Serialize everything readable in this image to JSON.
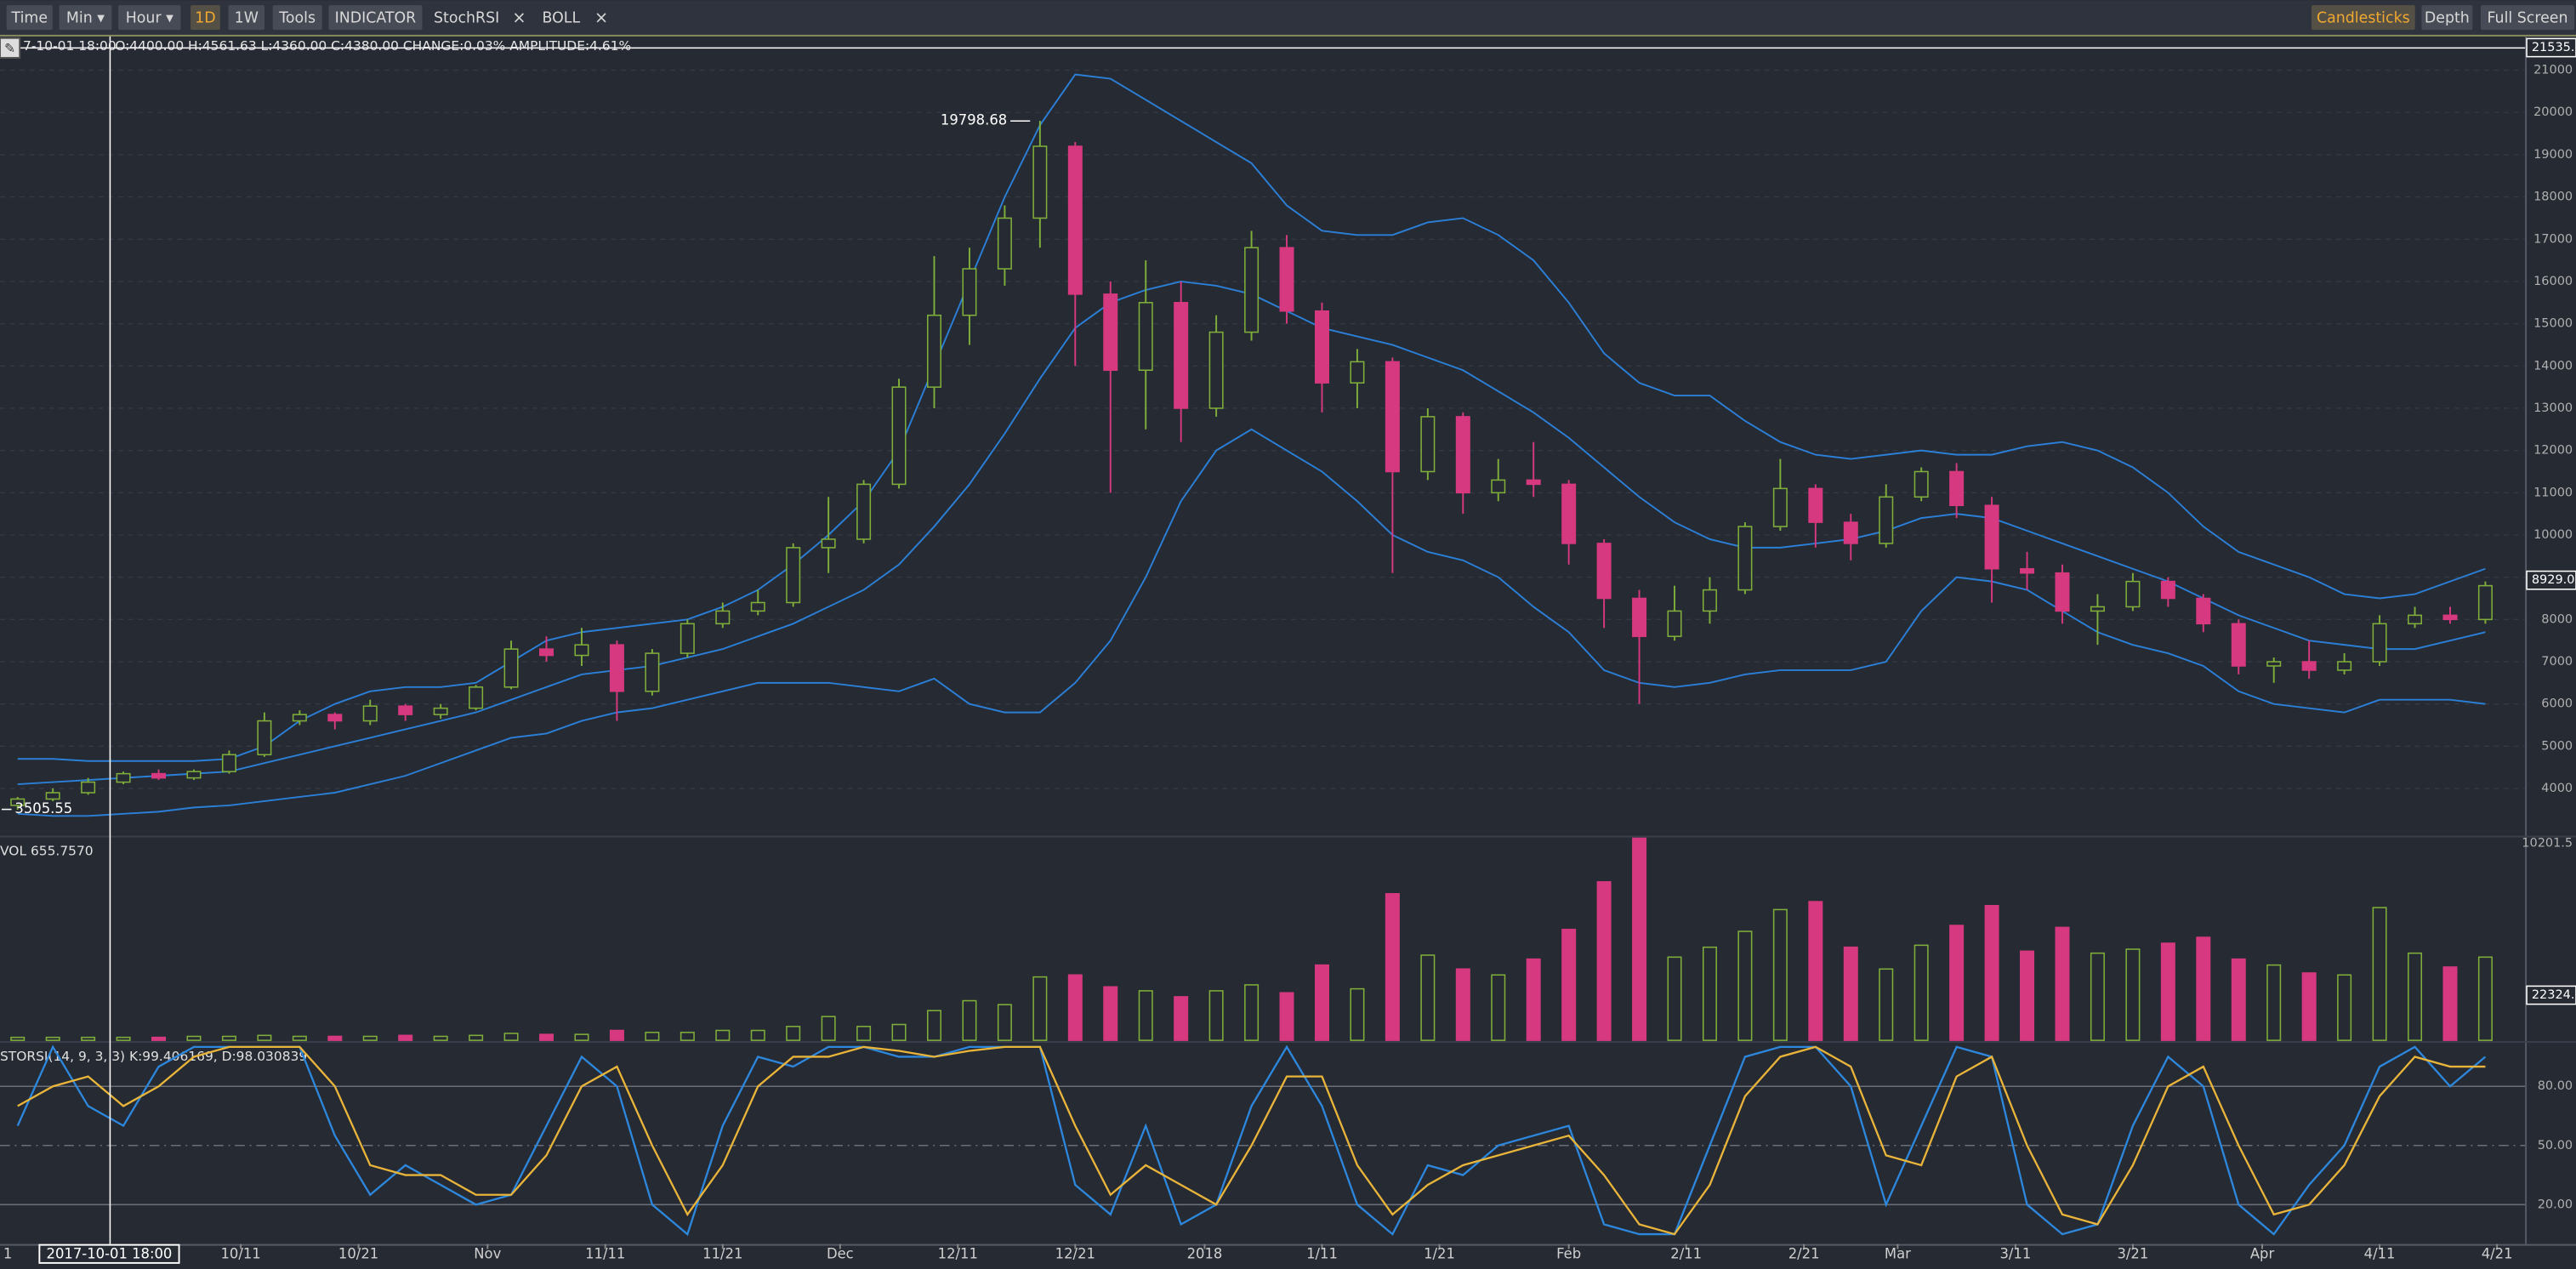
{
  "toolbar": {
    "left": [
      "Time",
      "Min ▾",
      "Hour ▾",
      "1D",
      "1W",
      "Tools",
      "INDICATOR"
    ],
    "indicators": [
      "StochRSI",
      "BOLL"
    ],
    "close_icon": "×",
    "right": [
      "Candlesticks",
      "Depth",
      "Full Screen"
    ]
  },
  "info": {
    "datetime": "7-10-01 18:00",
    "ohlc": "O:4400.00 H:4561.63 L:4360.00 C:4380.00 CHANGE:0.03% AMPLITUDE:4.61%",
    "crosshair_label": "2017-10-01 18:00",
    "left_edge_label": "1"
  },
  "chart_data": [
    {
      "type": "candlestick",
      "xlim": [
        -0.5,
        70.8
      ],
      "ylim": [
        2900,
        21800
      ],
      "yticks": [
        4000,
        5000,
        6000,
        7000,
        8000,
        9000,
        10000,
        11000,
        12000,
        13000,
        14000,
        15000,
        16000,
        17000,
        18000,
        19000,
        20000,
        21000
      ],
      "grid": true,
      "up_color": "#7fae3a",
      "down_color": "#d6397f",
      "open": [
        3600,
        3750,
        3900,
        4150,
        4350,
        4250,
        4400,
        4800,
        5600,
        5750,
        5600,
        5950,
        5750,
        5900,
        6400,
        7300,
        7150,
        7400,
        6300,
        7200,
        7900,
        8200,
        8400,
        9700,
        9900,
        11200,
        13500,
        15200,
        16300,
        17500,
        19200,
        15700,
        13900,
        15500,
        13000,
        14800,
        16800,
        15300,
        13600,
        14100,
        11500,
        12800,
        11000,
        11300,
        11200,
        9800,
        8500,
        7600,
        8200,
        8700,
        10200,
        11100,
        10300,
        9800,
        10900,
        11500,
        10700,
        9200,
        9100,
        8200,
        8300,
        8900,
        8500,
        7900,
        6900,
        7000,
        6800,
        7000,
        7900,
        8100,
        8000
      ],
      "high": [
        3800,
        4000,
        4250,
        4400,
        4450,
        4450,
        4900,
        5800,
        5850,
        5800,
        6100,
        6000,
        6000,
        6450,
        7500,
        7600,
        7800,
        7500,
        7300,
        8000,
        8400,
        8700,
        9800,
        10900,
        11300,
        13700,
        16600,
        16800,
        17800,
        19800,
        19300,
        16000,
        16500,
        16000,
        15200,
        17200,
        17100,
        15500,
        14400,
        14200,
        13000,
        12900,
        11800,
        12200,
        11300,
        9900,
        8700,
        8800,
        9000,
        10300,
        11800,
        11200,
        10500,
        11200,
        11600,
        11700,
        10900,
        9600,
        9300,
        8600,
        9100,
        9000,
        8600,
        8000,
        7100,
        7500,
        7200,
        8100,
        8300,
        8300,
        8900
      ],
      "low": [
        3500,
        3700,
        3850,
        4100,
        4200,
        4200,
        4350,
        4750,
        5500,
        5400,
        5500,
        5600,
        5650,
        5850,
        6350,
        7000,
        6900,
        5600,
        6200,
        7100,
        7800,
        8100,
        8300,
        9100,
        9800,
        11100,
        13000,
        14500,
        15900,
        16800,
        14000,
        11000,
        12500,
        12200,
        12800,
        14600,
        15000,
        12900,
        13000,
        9100,
        11300,
        10500,
        10800,
        10900,
        9300,
        7800,
        6000,
        7500,
        7900,
        8600,
        10100,
        9700,
        9400,
        9700,
        10800,
        10400,
        8400,
        8700,
        7900,
        7400,
        8200,
        8300,
        7700,
        6700,
        6500,
        6600,
        6700,
        6900,
        7800,
        7900,
        7900
      ],
      "close": [
        3750,
        3900,
        4150,
        4350,
        4250,
        4400,
        4800,
        5600,
        5750,
        5600,
        5950,
        5750,
        5900,
        6400,
        7300,
        7150,
        7400,
        6300,
        7200,
        7900,
        8200,
        8400,
        9700,
        9900,
        11200,
        13500,
        15200,
        16300,
        17500,
        19200,
        15700,
        13900,
        15500,
        13000,
        14800,
        16800,
        15300,
        13600,
        14100,
        11500,
        12800,
        11000,
        11300,
        11200,
        9800,
        8500,
        7600,
        8200,
        8700,
        10200,
        11100,
        10300,
        9800,
        10900,
        11500,
        10700,
        9200,
        9100,
        8200,
        8300,
        8900,
        8500,
        7900,
        6900,
        7000,
        6800,
        7000,
        7900,
        8100,
        8000,
        8800
      ],
      "overlays": [
        {
          "color": "#2b7fd6",
          "values": [
            4700,
            4700,
            4650,
            4650,
            4650,
            4650,
            4700,
            5000,
            5600,
            6000,
            6300,
            6400,
            6400,
            6500,
            7000,
            7500,
            7700,
            7800,
            7900,
            8000,
            8300,
            8700,
            9300,
            10000,
            10800,
            12000,
            14000,
            16000,
            18000,
            19700,
            20900,
            20800,
            20300,
            19800,
            19300,
            18800,
            17800,
            17200,
            17100,
            17100,
            17400,
            17500,
            17100,
            16500,
            15500,
            14300,
            13600,
            13300,
            13300,
            12700,
            12200,
            11900,
            11800,
            11900,
            12000,
            11900,
            11900,
            12100,
            12200,
            12000,
            11600,
            11000,
            10200,
            9600,
            9300,
            9000,
            8600,
            8500,
            8600,
            8900,
            9200
          ]
        },
        {
          "color": "#2b7fd6",
          "values": [
            4100,
            4150,
            4200,
            4250,
            4300,
            4350,
            4400,
            4600,
            4800,
            5000,
            5200,
            5400,
            5600,
            5800,
            6100,
            6400,
            6700,
            6800,
            6900,
            7100,
            7300,
            7600,
            7900,
            8300,
            8700,
            9300,
            10200,
            11200,
            12400,
            13700,
            14900,
            15500,
            15800,
            16000,
            15900,
            15700,
            15300,
            14900,
            14700,
            14500,
            14200,
            13900,
            13400,
            12900,
            12300,
            11600,
            10900,
            10300,
            9900,
            9700,
            9700,
            9800,
            9900,
            10100,
            10400,
            10500,
            10400,
            10100,
            9800,
            9500,
            9200,
            8900,
            8500,
            8100,
            7800,
            7500,
            7400,
            7300,
            7300,
            7500,
            7700
          ]
        },
        {
          "color": "#2b7fd6",
          "values": [
            3400,
            3350,
            3350,
            3400,
            3450,
            3550,
            3600,
            3700,
            3800,
            3900,
            4100,
            4300,
            4600,
            4900,
            5200,
            5300,
            5600,
            5800,
            5900,
            6100,
            6300,
            6500,
            6500,
            6500,
            6400,
            6300,
            6600,
            6000,
            5800,
            5800,
            6500,
            7500,
            9000,
            10800,
            12000,
            12500,
            12000,
            11500,
            10800,
            10000,
            9600,
            9400,
            9000,
            8300,
            7700,
            6800,
            6500,
            6400,
            6500,
            6700,
            6800,
            6800,
            6800,
            7000,
            8200,
            9000,
            8900,
            8700,
            8200,
            7700,
            7400,
            7200,
            6900,
            6300,
            6000,
            5900,
            5800,
            6100,
            6100,
            6100,
            6000
          ]
        }
      ],
      "max_label": 19798.68,
      "min_label": 3505.55,
      "price_labels": [
        {
          "value": 21535,
          "label": "21535."
        },
        {
          "value": 8929,
          "label": "8929.0"
        }
      ]
    },
    {
      "type": "bar",
      "title": "VOL 655.7570",
      "xlim": [
        -0.5,
        70.8
      ],
      "ylim": [
        0,
        10201.5
      ],
      "yticks": [
        10201.5
      ],
      "right_label": "22324.",
      "values": [
        150,
        150,
        150,
        150,
        150,
        200,
        200,
        250,
        200,
        200,
        200,
        250,
        200,
        250,
        350,
        300,
        300,
        500,
        400,
        400,
        500,
        500,
        700,
        1200,
        700,
        800,
        1500,
        2000,
        1800,
        3200,
        3300,
        2700,
        2500,
        2200,
        2500,
        2800,
        2400,
        3800,
        2600,
        7400,
        4300,
        3600,
        3300,
        4100,
        5600,
        8000,
        10200,
        4200,
        4700,
        5500,
        6600,
        7000,
        4700,
        3600,
        4800,
        5800,
        6800,
        4500,
        5700,
        4400,
        4600,
        4900,
        5200,
        4100,
        3800,
        3400,
        3300,
        6700,
        4400,
        3700,
        4200
      ]
    },
    {
      "type": "line",
      "title": "STORSI(14, 9, 3, 3) K:99.406169, D:98.030839",
      "xlim": [
        -0.5,
        70.8
      ],
      "ylim": [
        0,
        100
      ],
      "yticks": [
        {
          "value": 80,
          "label": "80.00"
        },
        {
          "value": 50,
          "label": "50.00"
        },
        {
          "value": 20,
          "label": "20.00"
        }
      ],
      "xticks": [
        {
          "value": 6.33,
          "label": "10/11"
        },
        {
          "value": 9.67,
          "label": "10/21"
        },
        {
          "value": 13.33,
          "label": "Nov"
        },
        {
          "value": 16.67,
          "label": "11/11"
        },
        {
          "value": 20,
          "label": "11/21"
        },
        {
          "value": 23.33,
          "label": "Dec"
        },
        {
          "value": 26.67,
          "label": "12/11"
        },
        {
          "value": 30,
          "label": "12/21"
        },
        {
          "value": 33.67,
          "label": "2018"
        },
        {
          "value": 37,
          "label": "1/11"
        },
        {
          "value": 40.33,
          "label": "1/21"
        },
        {
          "value": 44,
          "label": "Feb"
        },
        {
          "value": 47.33,
          "label": "2/11"
        },
        {
          "value": 50.67,
          "label": "2/21"
        },
        {
          "value": 53.33,
          "label": "Mar"
        },
        {
          "value": 56.67,
          "label": "3/11"
        },
        {
          "value": 60,
          "label": "3/21"
        },
        {
          "value": 63.67,
          "label": "Apr"
        },
        {
          "value": 67,
          "label": "4/11"
        },
        {
          "value": 70.33,
          "label": "4/21"
        }
      ],
      "series": [
        {
          "color": "#2d87dc",
          "values": [
            60,
            100,
            70,
            60,
            90,
            100,
            100,
            100,
            100,
            55,
            25,
            40,
            30,
            20,
            25,
            60,
            95,
            80,
            20,
            5,
            60,
            95,
            90,
            100,
            100,
            95,
            95,
            100,
            100,
            100,
            30,
            15,
            60,
            10,
            20,
            70,
            100,
            70,
            20,
            5,
            40,
            35,
            50,
            55,
            60,
            10,
            5,
            5,
            50,
            95,
            100,
            100,
            80,
            20,
            60,
            100,
            95,
            20,
            5,
            10,
            60,
            95,
            80,
            20,
            5,
            30,
            50,
            90,
            100,
            80,
            95
          ]
        },
        {
          "color": "#e9b43a",
          "values": [
            70,
            80,
            85,
            70,
            80,
            95,
            100,
            100,
            100,
            80,
            40,
            35,
            35,
            25,
            25,
            45,
            80,
            90,
            50,
            15,
            40,
            80,
            95,
            95,
            100,
            98,
            95,
            98,
            100,
            100,
            60,
            25,
            40,
            30,
            20,
            50,
            85,
            85,
            40,
            15,
            30,
            40,
            45,
            50,
            55,
            35,
            10,
            5,
            30,
            75,
            95,
            100,
            90,
            45,
            40,
            85,
            95,
            50,
            15,
            10,
            40,
            80,
            90,
            50,
            15,
            20,
            40,
            75,
            95,
            90,
            90
          ]
        }
      ]
    }
  ]
}
